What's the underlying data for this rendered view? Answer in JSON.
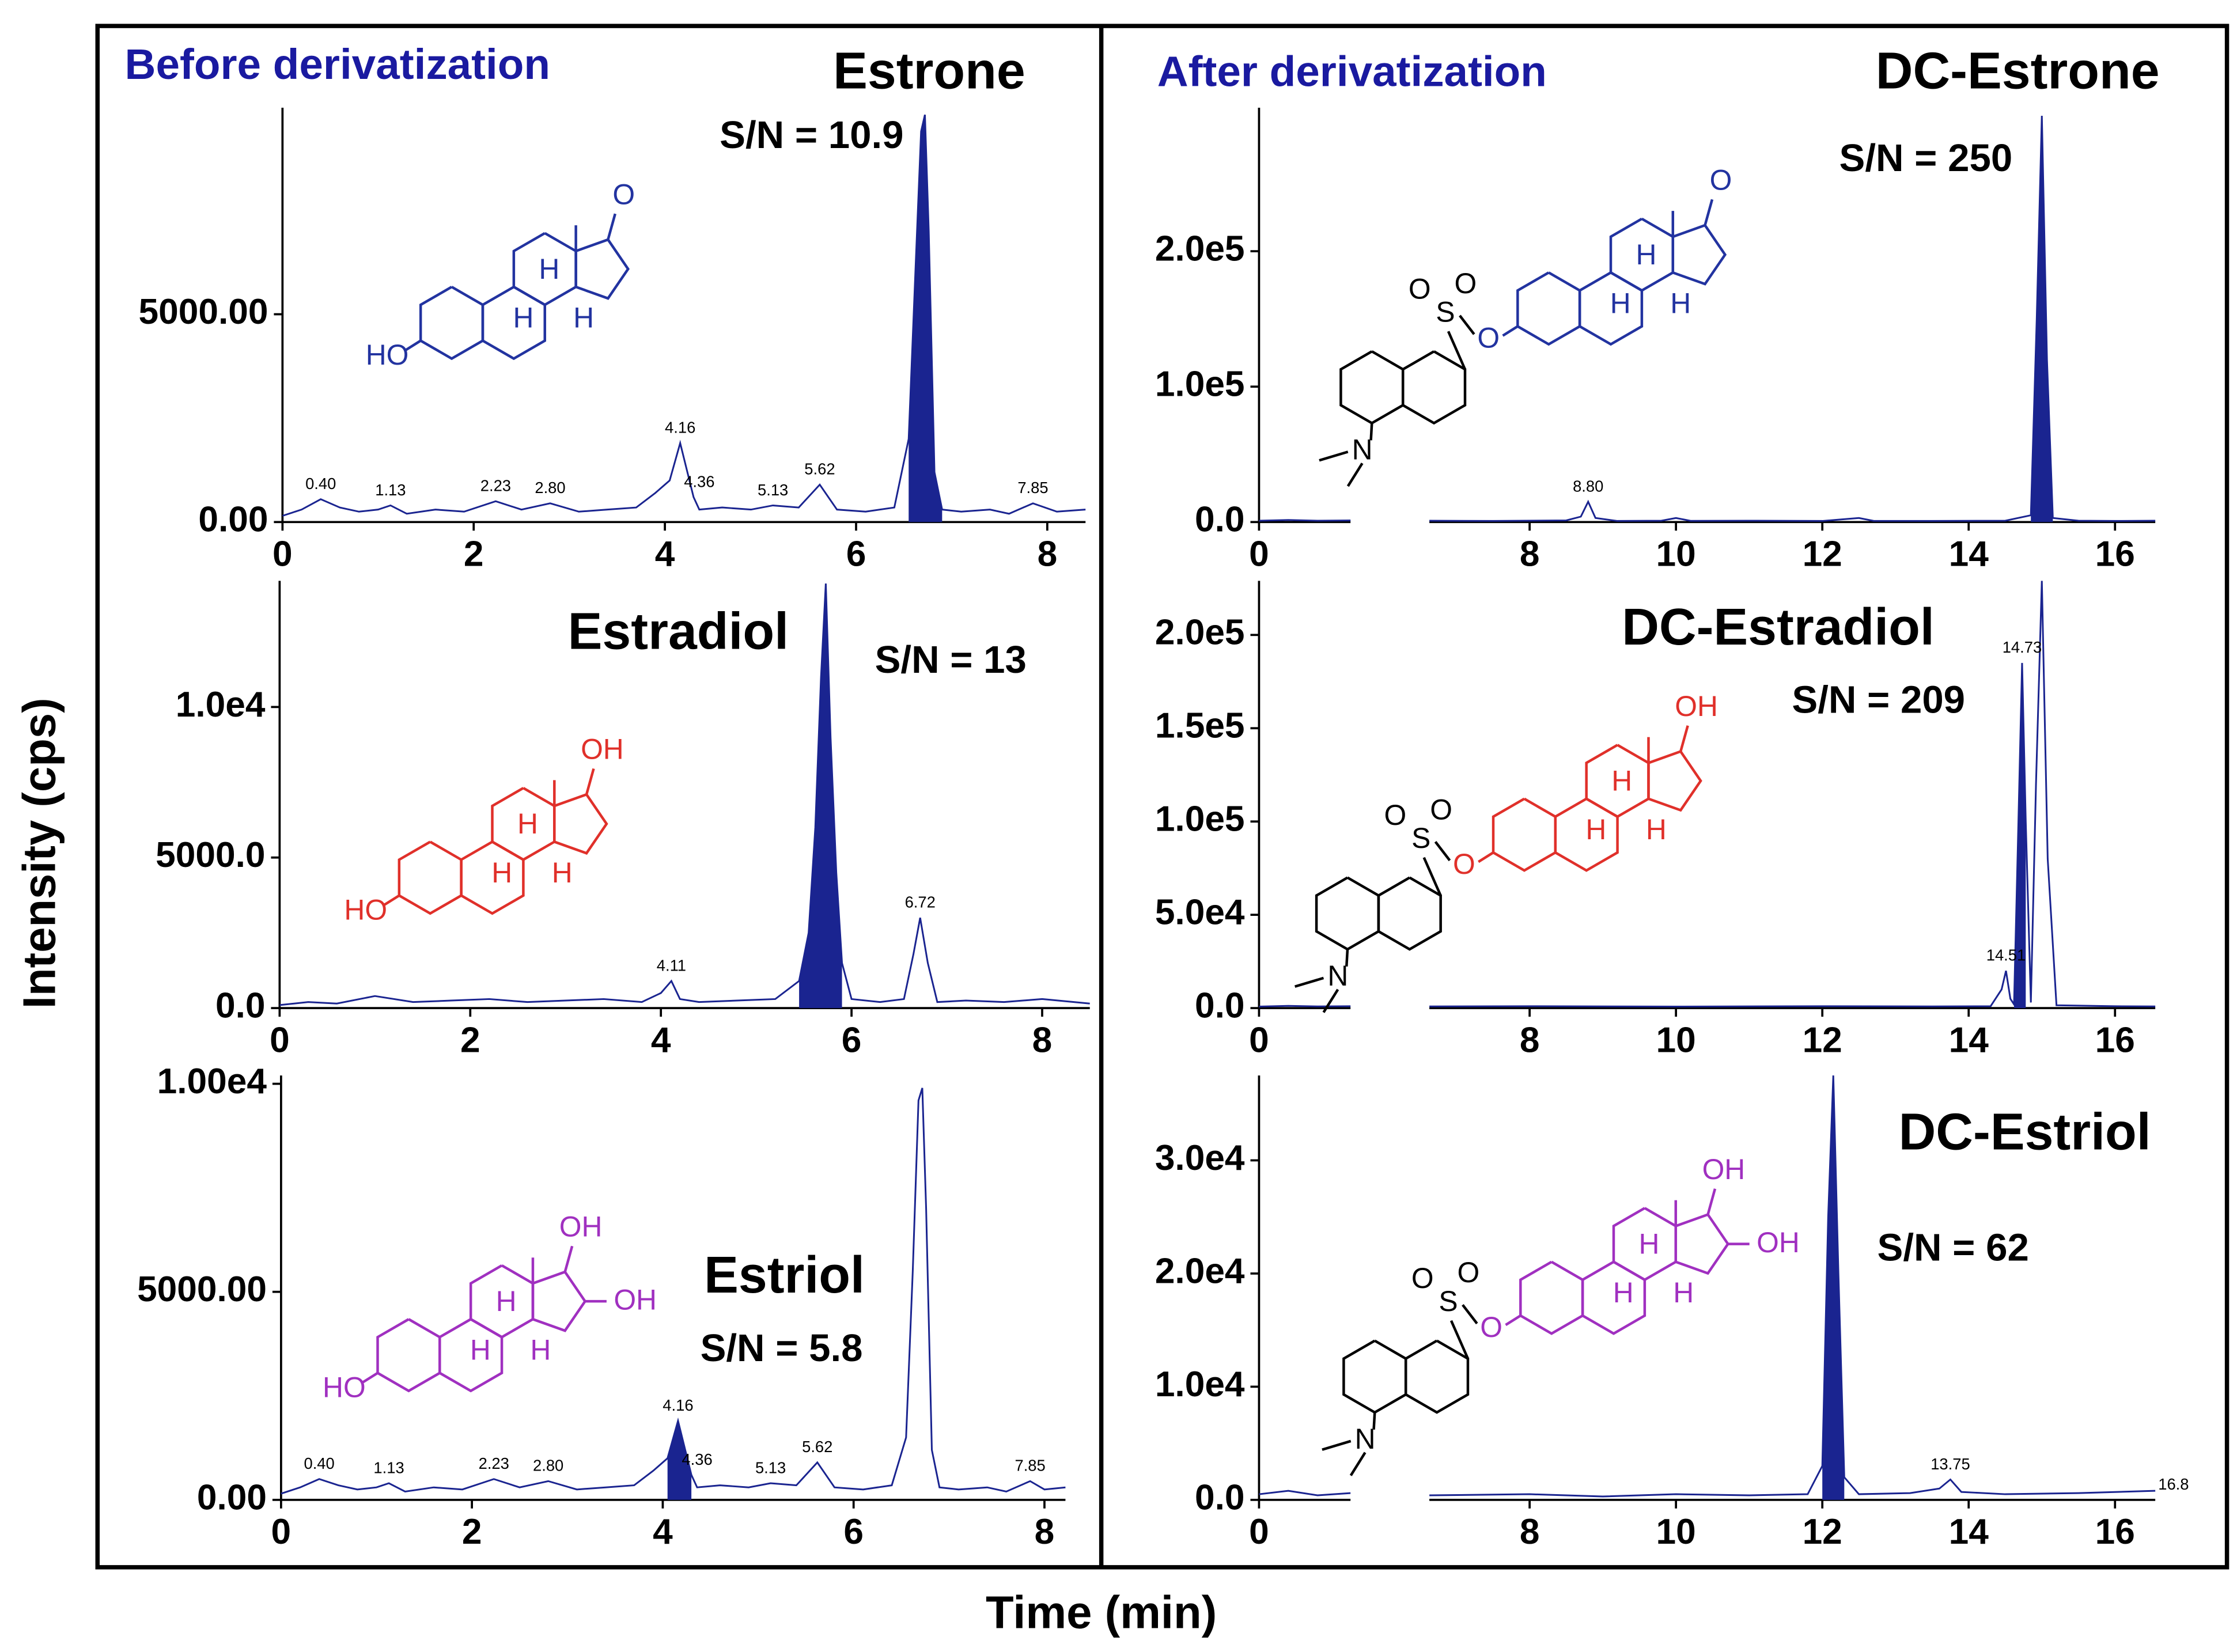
{
  "panels": [
    "Before derivatization",
    "After derivatization"
  ],
  "ylabel": "Intensity (cps)",
  "xlabel": "Time (min)",
  "chart_data": [
    {
      "type": "line",
      "title": "Estrone",
      "annotation": "S/N = 10.9",
      "color": "#1a2490",
      "structure_color": "#2233a0",
      "structure_labels": [
        "HO",
        "H",
        "H",
        "H",
        "O"
      ],
      "x": [
        0,
        0.2,
        0.4,
        0.6,
        0.8,
        1.0,
        1.13,
        1.3,
        1.6,
        1.9,
        2.23,
        2.5,
        2.8,
        3.1,
        3.4,
        3.7,
        3.9,
        4.05,
        4.16,
        4.3,
        4.36,
        4.6,
        4.9,
        5.13,
        5.4,
        5.62,
        5.8,
        6.1,
        6.4,
        6.55,
        6.62,
        6.68,
        6.72,
        6.76,
        6.82,
        6.9,
        7.1,
        7.4,
        7.6,
        7.85,
        8.1,
        8.4
      ],
      "values": [
        150,
        300,
        550,
        350,
        250,
        300,
        400,
        200,
        300,
        250,
        500,
        300,
        450,
        250,
        300,
        350,
        700,
        1000,
        1900,
        600,
        300,
        350,
        300,
        400,
        350,
        900,
        300,
        250,
        350,
        2000,
        6000,
        9400,
        9800,
        7000,
        1200,
        300,
        250,
        300,
        200,
        450,
        250,
        300
      ],
      "fill_range": [
        6.5,
        6.9
      ],
      "peak_labels": [
        {
          "value": 0.4,
          "label": "0.40"
        },
        1.13,
        2.23,
        {
          "value": 2.8,
          "label": "2.80"
        },
        4.16,
        4.36,
        5.13,
        5.62,
        7.85
      ],
      "xlim": [
        0,
        8.4
      ],
      "xticks": [
        0,
        2,
        4,
        6,
        8
      ],
      "ylim": [
        0,
        9970
      ],
      "yticks": [
        {
          "value": 0,
          "label": "0.00"
        },
        {
          "value": 5000,
          "label": "5000.00"
        }
      ]
    },
    {
      "type": "line",
      "title": "Estradiol",
      "annotation": "S/N = 13",
      "color": "#1a2490",
      "structure_color": "#e0302a",
      "structure_labels": [
        "HO",
        "H",
        "H",
        "H",
        "OH"
      ],
      "x": [
        0,
        0.3,
        0.6,
        1.0,
        1.4,
        1.8,
        2.2,
        2.6,
        3.0,
        3.4,
        3.8,
        4.0,
        4.11,
        4.2,
        4.4,
        4.8,
        5.2,
        5.45,
        5.55,
        5.62,
        5.68,
        5.73,
        5.78,
        5.84,
        5.9,
        6.0,
        6.3,
        6.55,
        6.65,
        6.72,
        6.8,
        6.9,
        7.2,
        7.6,
        8.0,
        8.5
      ],
      "values": [
        100,
        200,
        150,
        400,
        200,
        250,
        300,
        200,
        250,
        300,
        200,
        500,
        900,
        300,
        200,
        250,
        300,
        900,
        2500,
        6000,
        11000,
        14100,
        9000,
        4500,
        1500,
        300,
        200,
        300,
        1800,
        3000,
        1500,
        200,
        250,
        200,
        300,
        150
      ],
      "fill_range": [
        5.4,
        5.95
      ],
      "peak_labels": [
        4.11,
        6.72
      ],
      "xlim": [
        0,
        8.5
      ],
      "xticks": [
        0,
        2,
        4,
        6,
        8
      ],
      "ylim": [
        0,
        14190
      ],
      "yticks": [
        {
          "value": 0,
          "label": "0.0"
        },
        {
          "value": 5000,
          "label": "5000.0"
        },
        {
          "value": 10000,
          "label": "1.0e4"
        }
      ]
    },
    {
      "type": "line",
      "title": "Estriol",
      "annotation": "S/N = 5.8",
      "color": "#1a2490",
      "structure_color": "#a030c0",
      "structure_labels": [
        "HO",
        "H",
        "H",
        "H",
        "OH",
        "OH"
      ],
      "x": [
        0,
        0.2,
        0.4,
        0.6,
        0.8,
        1.0,
        1.13,
        1.3,
        1.6,
        1.9,
        2.23,
        2.5,
        2.8,
        3.1,
        3.4,
        3.7,
        3.9,
        4.05,
        4.16,
        4.3,
        4.36,
        4.6,
        4.9,
        5.13,
        5.4,
        5.62,
        5.8,
        6.1,
        6.4,
        6.55,
        6.62,
        6.68,
        6.72,
        6.76,
        6.82,
        6.9,
        7.1,
        7.4,
        7.6,
        7.85,
        8.0,
        8.22
      ],
      "values": [
        150,
        300,
        500,
        350,
        250,
        300,
        400,
        200,
        300,
        250,
        500,
        300,
        450,
        250,
        300,
        350,
        700,
        1000,
        1900,
        600,
        300,
        350,
        300,
        400,
        350,
        900,
        300,
        250,
        350,
        1500,
        5500,
        9600,
        9900,
        7000,
        1200,
        300,
        250,
        300,
        200,
        450,
        250,
        300
      ],
      "fill_range": [
        3.95,
        4.3
      ],
      "peak_labels": [
        {
          "value": 0.4,
          "label": "0.40"
        },
        1.13,
        2.23,
        {
          "value": 2.8,
          "label": "2.80"
        },
        4.16,
        4.36,
        5.13,
        5.62,
        7.85
      ],
      "xlim": [
        0,
        8.22
      ],
      "xticks": [
        0,
        2,
        4,
        6,
        8
      ],
      "ylim": [
        0,
        10200
      ],
      "yticks": [
        {
          "value": 0,
          "label": "0.00"
        },
        {
          "value": 5000,
          "label": "5000.00"
        },
        {
          "value": 10000,
          "label": "1.00e4"
        }
      ]
    },
    {
      "type": "line",
      "title": "DC-Estrone",
      "annotation": "S/N = 250",
      "color": "#1a2490",
      "structure_color": "#2233a0",
      "structure_labels": [
        "O",
        "O",
        "S",
        "O",
        "H",
        "H",
        "H",
        "O",
        "N"
      ],
      "x": [
        0,
        0.4,
        0.8,
        1.25,
        4,
        6.63,
        7.5,
        8.5,
        8.7,
        8.8,
        8.9,
        9.2,
        9.8,
        10.0,
        10.2,
        11,
        12,
        12.5,
        12.7,
        13.5,
        14.5,
        14.85,
        14.93,
        15.0,
        15.07,
        15.15,
        15.5,
        16,
        16.55
      ],
      "values": [
        1000,
        1500,
        1000,
        1200,
        null,
        1000,
        800,
        1200,
        4000,
        15000,
        3000,
        800,
        1000,
        3000,
        900,
        1000,
        800,
        3000,
        900,
        800,
        1000,
        5000,
        150000,
        300000,
        120000,
        3000,
        1000,
        800,
        1000
      ],
      "fill_range": [
        14.8,
        15.2
      ],
      "peak_labels": [
        {
          "value": 8.8,
          "label": "8.80"
        }
      ],
      "x_break": [
        1.25,
        6.63
      ],
      "xlim": [
        0,
        16.55
      ],
      "xticks": [
        0,
        8,
        10,
        12,
        14,
        16
      ],
      "ylim": [
        0,
        306000
      ],
      "yticks": [
        {
          "value": 0,
          "label": "0.0"
        },
        {
          "value": 100000,
          "label": "1.0e5"
        },
        {
          "value": 200000,
          "label": "2.0e5"
        }
      ]
    },
    {
      "type": "line",
      "title": "DC-Estradiol",
      "annotation": "S/N = 209",
      "color": "#1a2490",
      "structure_color": "#e0302a",
      "structure_labels": [
        "O",
        "O",
        "S",
        "O",
        "H",
        "H",
        "H",
        "OH",
        "N"
      ],
      "x": [
        0,
        0.4,
        0.8,
        1.25,
        4,
        6.63,
        8,
        10,
        12,
        13.5,
        14.3,
        14.45,
        14.51,
        14.57,
        14.62,
        14.68,
        14.73,
        14.78,
        14.85,
        14.92,
        15.0,
        15.08,
        15.2,
        16,
        16.55
      ],
      "values": [
        800,
        1200,
        900,
        1000,
        null,
        900,
        1000,
        800,
        1000,
        900,
        1000,
        10000,
        20000,
        5000,
        2000,
        100000,
        185000,
        100000,
        3000,
        120000,
        229000,
        80000,
        1500,
        1000,
        900
      ],
      "fill_range": [
        14.6,
        14.82
      ],
      "peak_labels": [
        14.51,
        14.73
      ],
      "x_break": [
        1.25,
        6.63
      ],
      "xlim": [
        0,
        16.55
      ],
      "xticks": [
        0,
        8,
        10,
        12,
        14,
        16
      ],
      "ylim": [
        0,
        229000
      ],
      "yticks": [
        {
          "value": 0,
          "label": "0.0"
        },
        {
          "value": 50000,
          "label": "5.0e4"
        },
        {
          "value": 100000,
          "label": "1.0e5"
        },
        {
          "value": 150000,
          "label": "1.5e5"
        },
        {
          "value": 200000,
          "label": "2.0e5"
        }
      ]
    },
    {
      "type": "line",
      "title": "DC-Estriol",
      "annotation": "S/N = 62",
      "color": "#1a2490",
      "structure_color": "#a030c0",
      "structure_labels": [
        "O",
        "O",
        "S",
        "O",
        "H",
        "H",
        "H",
        "OH",
        "OH",
        "N"
      ],
      "x": [
        0,
        0.4,
        0.8,
        1.25,
        4,
        6.63,
        8,
        9,
        10,
        11,
        11.8,
        12.0,
        12.08,
        12.15,
        12.22,
        12.3,
        12.5,
        13.2,
        13.6,
        13.75,
        13.9,
        14.5,
        15.5,
        16.55
      ],
      "values": [
        500,
        800,
        400,
        600,
        null,
        400,
        500,
        300,
        500,
        400,
        500,
        3000,
        25000,
        37500,
        20000,
        2000,
        500,
        600,
        1000,
        1800,
        700,
        500,
        600,
        800
      ],
      "fill_range": [
        11.95,
        12.35
      ],
      "peak_labels": [
        13.75,
        16.8
      ],
      "x_break": [
        1.25,
        6.63
      ],
      "xlim": [
        0,
        16.55
      ],
      "xticks": [
        0,
        8,
        10,
        12,
        14,
        16
      ],
      "ylim": [
        0,
        37500
      ],
      "yticks": [
        {
          "value": 0,
          "label": "0.0"
        },
        {
          "value": 10000,
          "label": "1.0e4"
        },
        {
          "value": 20000,
          "label": "2.0e4"
        },
        {
          "value": 30000,
          "label": "3.0e4"
        }
      ]
    }
  ]
}
